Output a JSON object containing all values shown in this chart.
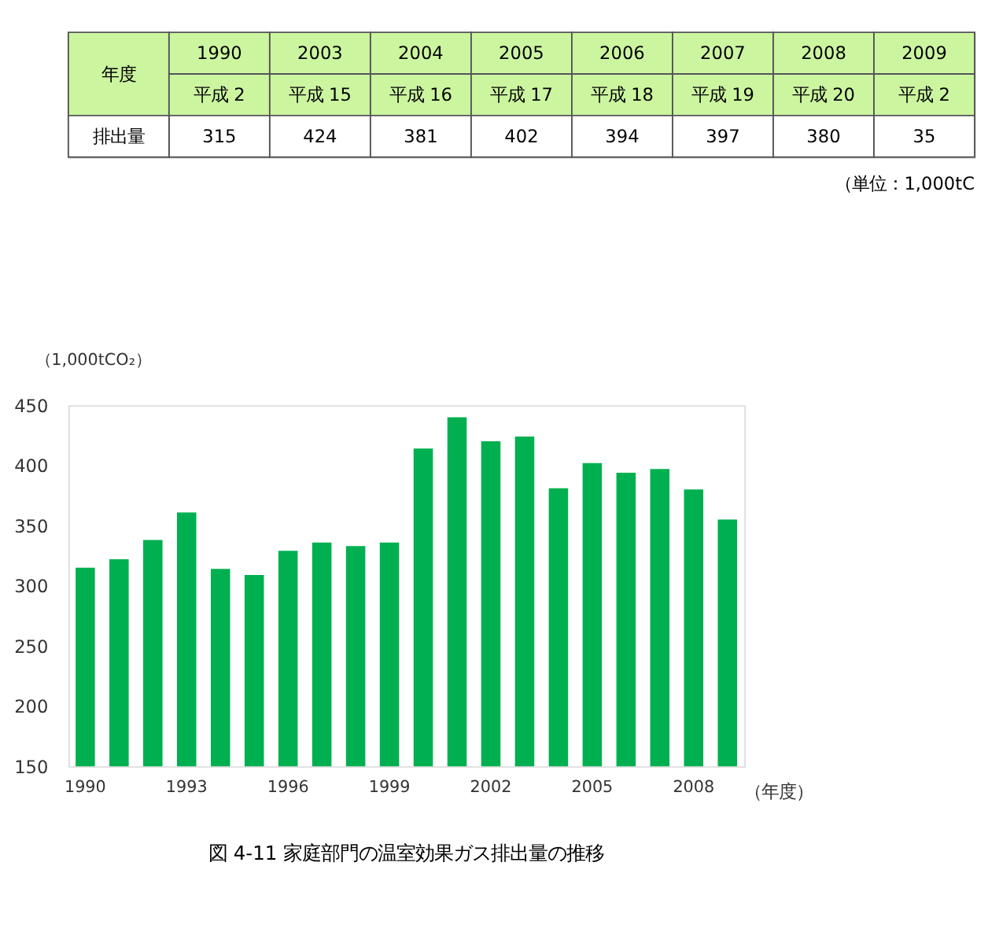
{
  "chart_data": {
    "type": "bar",
    "title": "図 4-11  家庭部門の温室効果ガス排出量の推移",
    "ylabel": "（1,000tCO₂）",
    "xlabel": "（年度）",
    "categories": [
      "1990",
      null,
      null,
      "1993",
      null,
      null,
      "1996",
      null,
      null,
      "1999",
      null,
      null,
      "2002",
      null,
      null,
      "2005",
      null,
      null,
      "2008",
      null
    ],
    "values": [
      315,
      322,
      338,
      361,
      314,
      309,
      329,
      336,
      333,
      336,
      414,
      440,
      420,
      424,
      381,
      402,
      394,
      397,
      380,
      355
    ],
    "color": "#00b050",
    "ylim": [
      150,
      450
    ],
    "yticks": [
      150,
      200,
      250,
      300,
      350,
      400,
      450
    ],
    "grid": false,
    "annotations": [
      "年度",
      "1990",
      "2003",
      "2004",
      "2005",
      "2006",
      "2007",
      "2008",
      "2009",
      "平成 2",
      "平成 15",
      "平成 16",
      "平成 17",
      "平成 18",
      "平成 19",
      "平成 20",
      "平成 2",
      "排出量",
      "315",
      "424",
      "381",
      "402",
      "394",
      "397",
      "380",
      "35",
      "（単位：1,000tC"
    ]
  }
}
